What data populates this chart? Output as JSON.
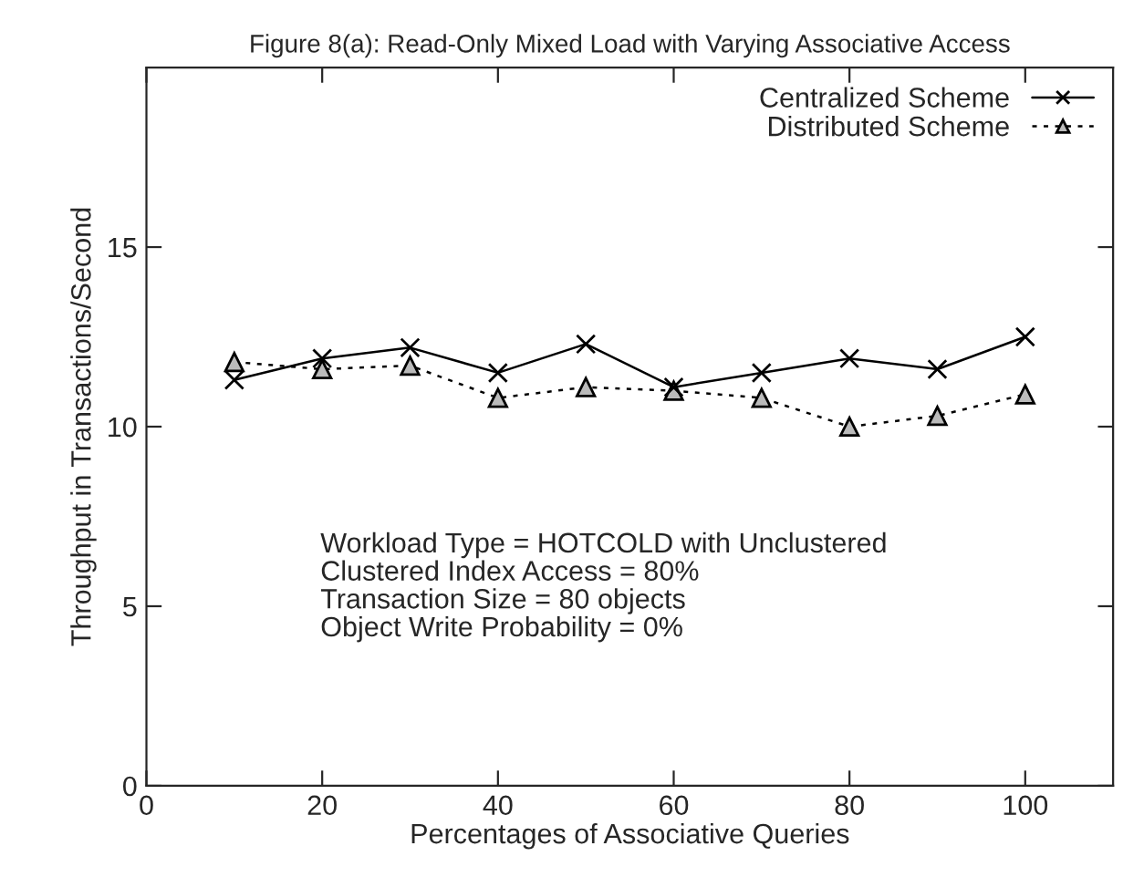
{
  "chart_data": {
    "type": "line",
    "title": "Figure 8(a): Read-Only Mixed Load with Varying Associative Access",
    "xlabel": "Percentages of Associative Queries",
    "ylabel": "Throughput in Transactions/Second",
    "x": [
      10,
      20,
      30,
      40,
      50,
      60,
      70,
      80,
      90,
      100
    ],
    "series": [
      {
        "name": "Centralized Scheme",
        "color": "#000000",
        "marker": "cross",
        "line_style": "solid",
        "values": [
          11.3,
          11.9,
          12.2,
          11.5,
          12.3,
          11.1,
          11.5,
          11.9,
          11.6,
          12.5
        ]
      },
      {
        "name": "Distributed Scheme",
        "color": "#000000",
        "marker": "triangle",
        "line_style": "dashed",
        "values": [
          11.8,
          11.6,
          11.7,
          10.8,
          11.1,
          11.0,
          10.8,
          10.0,
          10.3,
          10.9
        ]
      }
    ],
    "xlim": [
      0,
      110
    ],
    "xticks": [
      0,
      20,
      40,
      60,
      80,
      100
    ],
    "ylim": [
      0,
      20
    ],
    "yticks": [
      0,
      5,
      10,
      15
    ],
    "grid": false,
    "legend": "top right",
    "annotations": [
      "Workload Type = HOTCOLD with Unclustered\nClustered Index Access = 80%\nTransaction Size = 80 objects\nObject Write Probability = 0%"
    ]
  }
}
